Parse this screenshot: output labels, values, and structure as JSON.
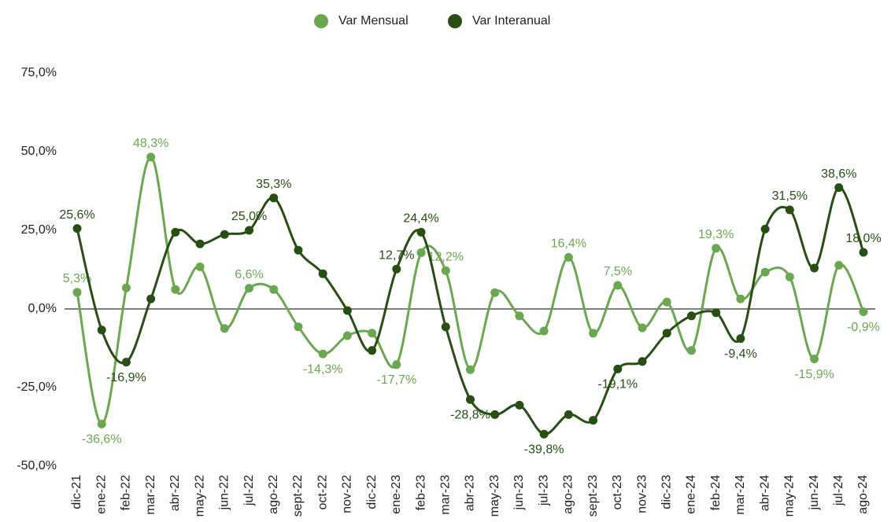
{
  "chart_data": {
    "type": "line",
    "categories": [
      "dic-21",
      "ene-22",
      "feb-22",
      "mar-22",
      "abr-22",
      "may-22",
      "jun-22",
      "jul-22",
      "ago-22",
      "sept-22",
      "oct-22",
      "nov-22",
      "dic-22",
      "ene-23",
      "feb-23",
      "mar-23",
      "abr-23",
      "may-23",
      "jun-23",
      "jul-23",
      "ago-23",
      "sept-23",
      "oct-23",
      "nov-23",
      "dic-23",
      "ene-24",
      "feb-24",
      "mar-24",
      "abr-24",
      "may-24",
      "jun-24",
      "jul-24",
      "ago-24"
    ],
    "series": [
      {
        "name": "Var Mensual",
        "color": "#6aa84f",
        "values": [
          5.3,
          -36.6,
          6.7,
          48.3,
          6.2,
          13.4,
          -6.2,
          6.6,
          6.2,
          -5.7,
          -14.3,
          -8.5,
          -7.7,
          -17.7,
          17.9,
          12.2,
          -19.3,
          5.2,
          -2.2,
          -7.0,
          16.4,
          -7.7,
          7.5,
          -6.0,
          2.2,
          -13.2,
          19.3,
          3.2,
          11.7,
          10.2,
          -15.9,
          13.9,
          -0.9
        ],
        "value_labels": [
          "5,3%",
          "-36,6%",
          null,
          "48,3%",
          null,
          null,
          null,
          "6,6%",
          null,
          null,
          "-14,3%",
          null,
          null,
          "-17,7%",
          null,
          "12,2%",
          null,
          null,
          null,
          null,
          "16,4%",
          null,
          "7,5%",
          null,
          null,
          null,
          "19,3%",
          null,
          null,
          null,
          "-15,9%",
          null,
          "-0,9%"
        ]
      },
      {
        "name": "Var Interanual",
        "color": "#274e13",
        "values": [
          25.6,
          -6.7,
          -16.9,
          3.2,
          24.4,
          20.7,
          23.7,
          25.0,
          35.3,
          18.7,
          11.2,
          -0.5,
          -13.2,
          12.7,
          24.4,
          -5.7,
          -28.8,
          -33.6,
          -30.6,
          -39.8,
          -33.6,
          -35.4,
          -19.1,
          -16.7,
          -7.7,
          -2.2,
          -1.2,
          -9.4,
          25.4,
          31.5,
          13.0,
          38.6,
          18.0
        ],
        "value_labels": [
          "25,6%",
          null,
          "-16,9%",
          null,
          null,
          null,
          null,
          "25,0%",
          "35,3%",
          null,
          null,
          null,
          null,
          "12,7%",
          "24,4%",
          null,
          "-28,8%",
          null,
          null,
          "-39,8%",
          null,
          null,
          "-19,1%",
          null,
          null,
          null,
          null,
          "-9,4%",
          null,
          "31,5%",
          null,
          "38,6%",
          "18,0%"
        ]
      }
    ],
    "ylim": [
      -50,
      75
    ],
    "yticks": [
      {
        "value": -50,
        "label": "-50,0%"
      },
      {
        "value": -25,
        "label": "-25,0%"
      },
      {
        "value": 0,
        "label": "0,0%"
      },
      {
        "value": 25,
        "label": "25,0%"
      },
      {
        "value": 50,
        "label": "50,0%"
      },
      {
        "value": 75,
        "label": "75,0%"
      }
    ],
    "grid": false,
    "legend": "top"
  }
}
